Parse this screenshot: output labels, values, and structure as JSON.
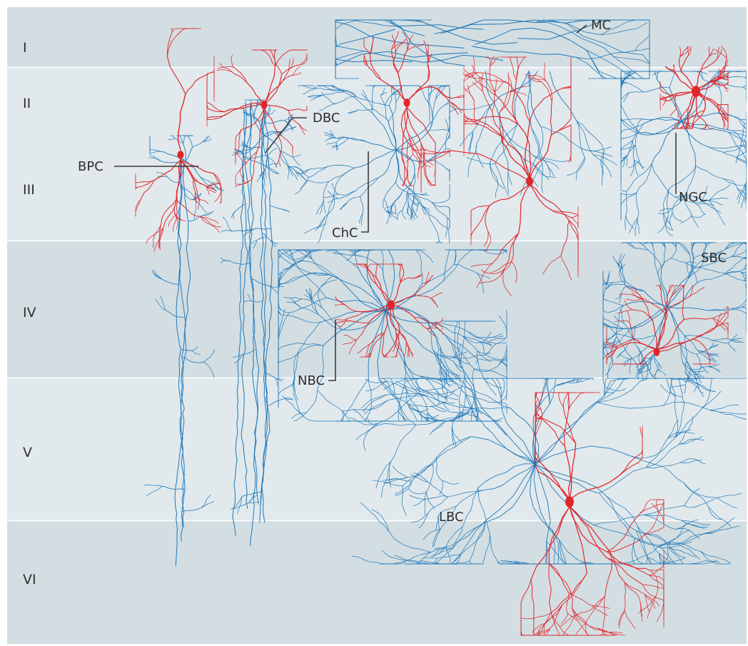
{
  "colors": {
    "band_dark": "#d3dee2",
    "band_light": "#e1e9ec",
    "layer_divider": "#ffffff",
    "axon": "#1f78b9",
    "dendrite": "#e0262b",
    "label_text": "#2e2e2e"
  },
  "layers": [
    {
      "label": "I",
      "shade": "dark"
    },
    {
      "label": "II",
      "shade": "light"
    },
    {
      "label": "III",
      "shade": "light"
    },
    {
      "label": "IV",
      "shade": "dark"
    },
    {
      "label": "V",
      "shade": "light"
    },
    {
      "label": "VI",
      "shade": "dark"
    }
  ],
  "cells": [
    {
      "id": "bpc",
      "label": "BPC"
    },
    {
      "id": "dbc",
      "label": "DBC"
    },
    {
      "id": "chc",
      "label": "ChC"
    },
    {
      "id": "mc",
      "label": "MC"
    },
    {
      "id": "ngc",
      "label": "NGC"
    },
    {
      "id": "sbc",
      "label": "SBC"
    },
    {
      "id": "nbc",
      "label": "NBC"
    },
    {
      "id": "lbc",
      "label": "LBC"
    }
  ]
}
